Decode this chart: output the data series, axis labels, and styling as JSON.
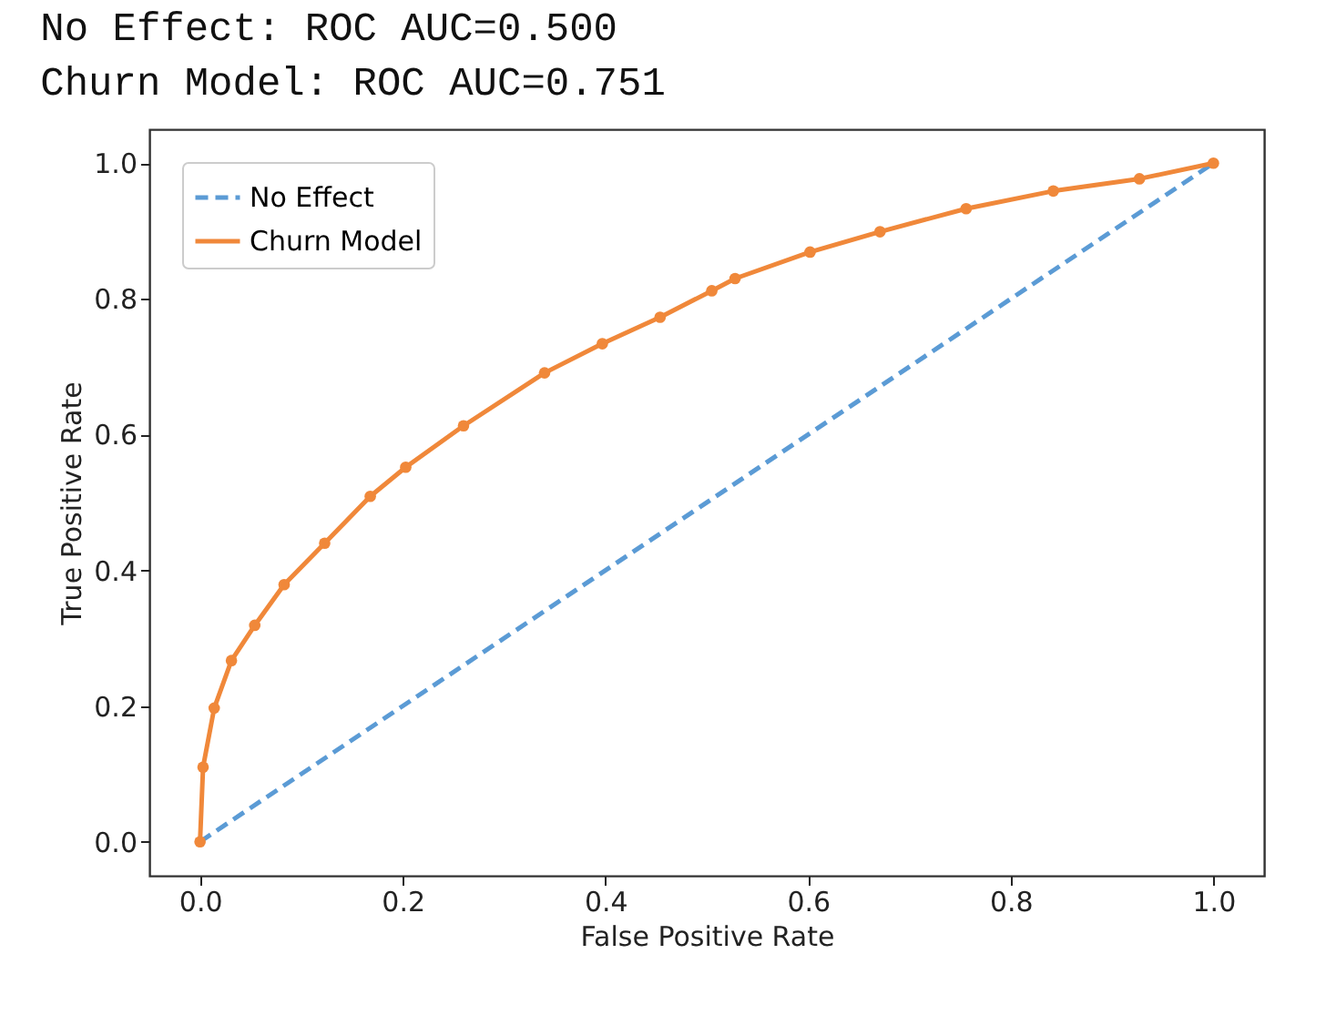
{
  "chart_data": {
    "type": "line",
    "xlabel": "False Positive Rate",
    "ylabel": "True Positive Rate",
    "annotations": [
      "No Effect: ROC AUC=0.500",
      "Churn Model: ROC AUC=0.751"
    ],
    "xlim": [
      -0.05,
      1.05
    ],
    "ylim": [
      -0.05,
      1.05
    ],
    "xticks": [
      {
        "value": 0,
        "label": "0.0"
      },
      0.2,
      0.4,
      0.6,
      0.8,
      {
        "value": 1,
        "label": "1.0"
      }
    ],
    "yticks": [
      {
        "value": 0,
        "label": "0.0"
      },
      0.2,
      0.4,
      0.6,
      0.8,
      {
        "value": 1,
        "label": "1.0"
      }
    ],
    "grid": false,
    "legend": "top left",
    "series": [
      {
        "name": "No Effect",
        "color": "#5b9bd5",
        "line_style": "dashed",
        "x": [
          0,
          1
        ],
        "values": [
          0,
          1
        ]
      },
      {
        "name": "Churn Model",
        "color": "#f0883a",
        "line_style": "solid",
        "marker": "circle",
        "x": [
          0,
          0.003,
          0.014,
          0.031,
          0.054,
          0.083,
          0.123,
          0.168,
          0.203,
          0.26,
          0.34,
          0.397,
          0.454,
          0.505,
          0.528,
          0.602,
          0.671,
          0.756,
          0.842,
          0.927,
          1
        ],
        "values": [
          0,
          0.11,
          0.197,
          0.267,
          0.319,
          0.379,
          0.44,
          0.509,
          0.552,
          0.613,
          0.691,
          0.734,
          0.773,
          0.812,
          0.83,
          0.869,
          0.899,
          0.933,
          0.959,
          0.977,
          1
        ]
      }
    ]
  }
}
